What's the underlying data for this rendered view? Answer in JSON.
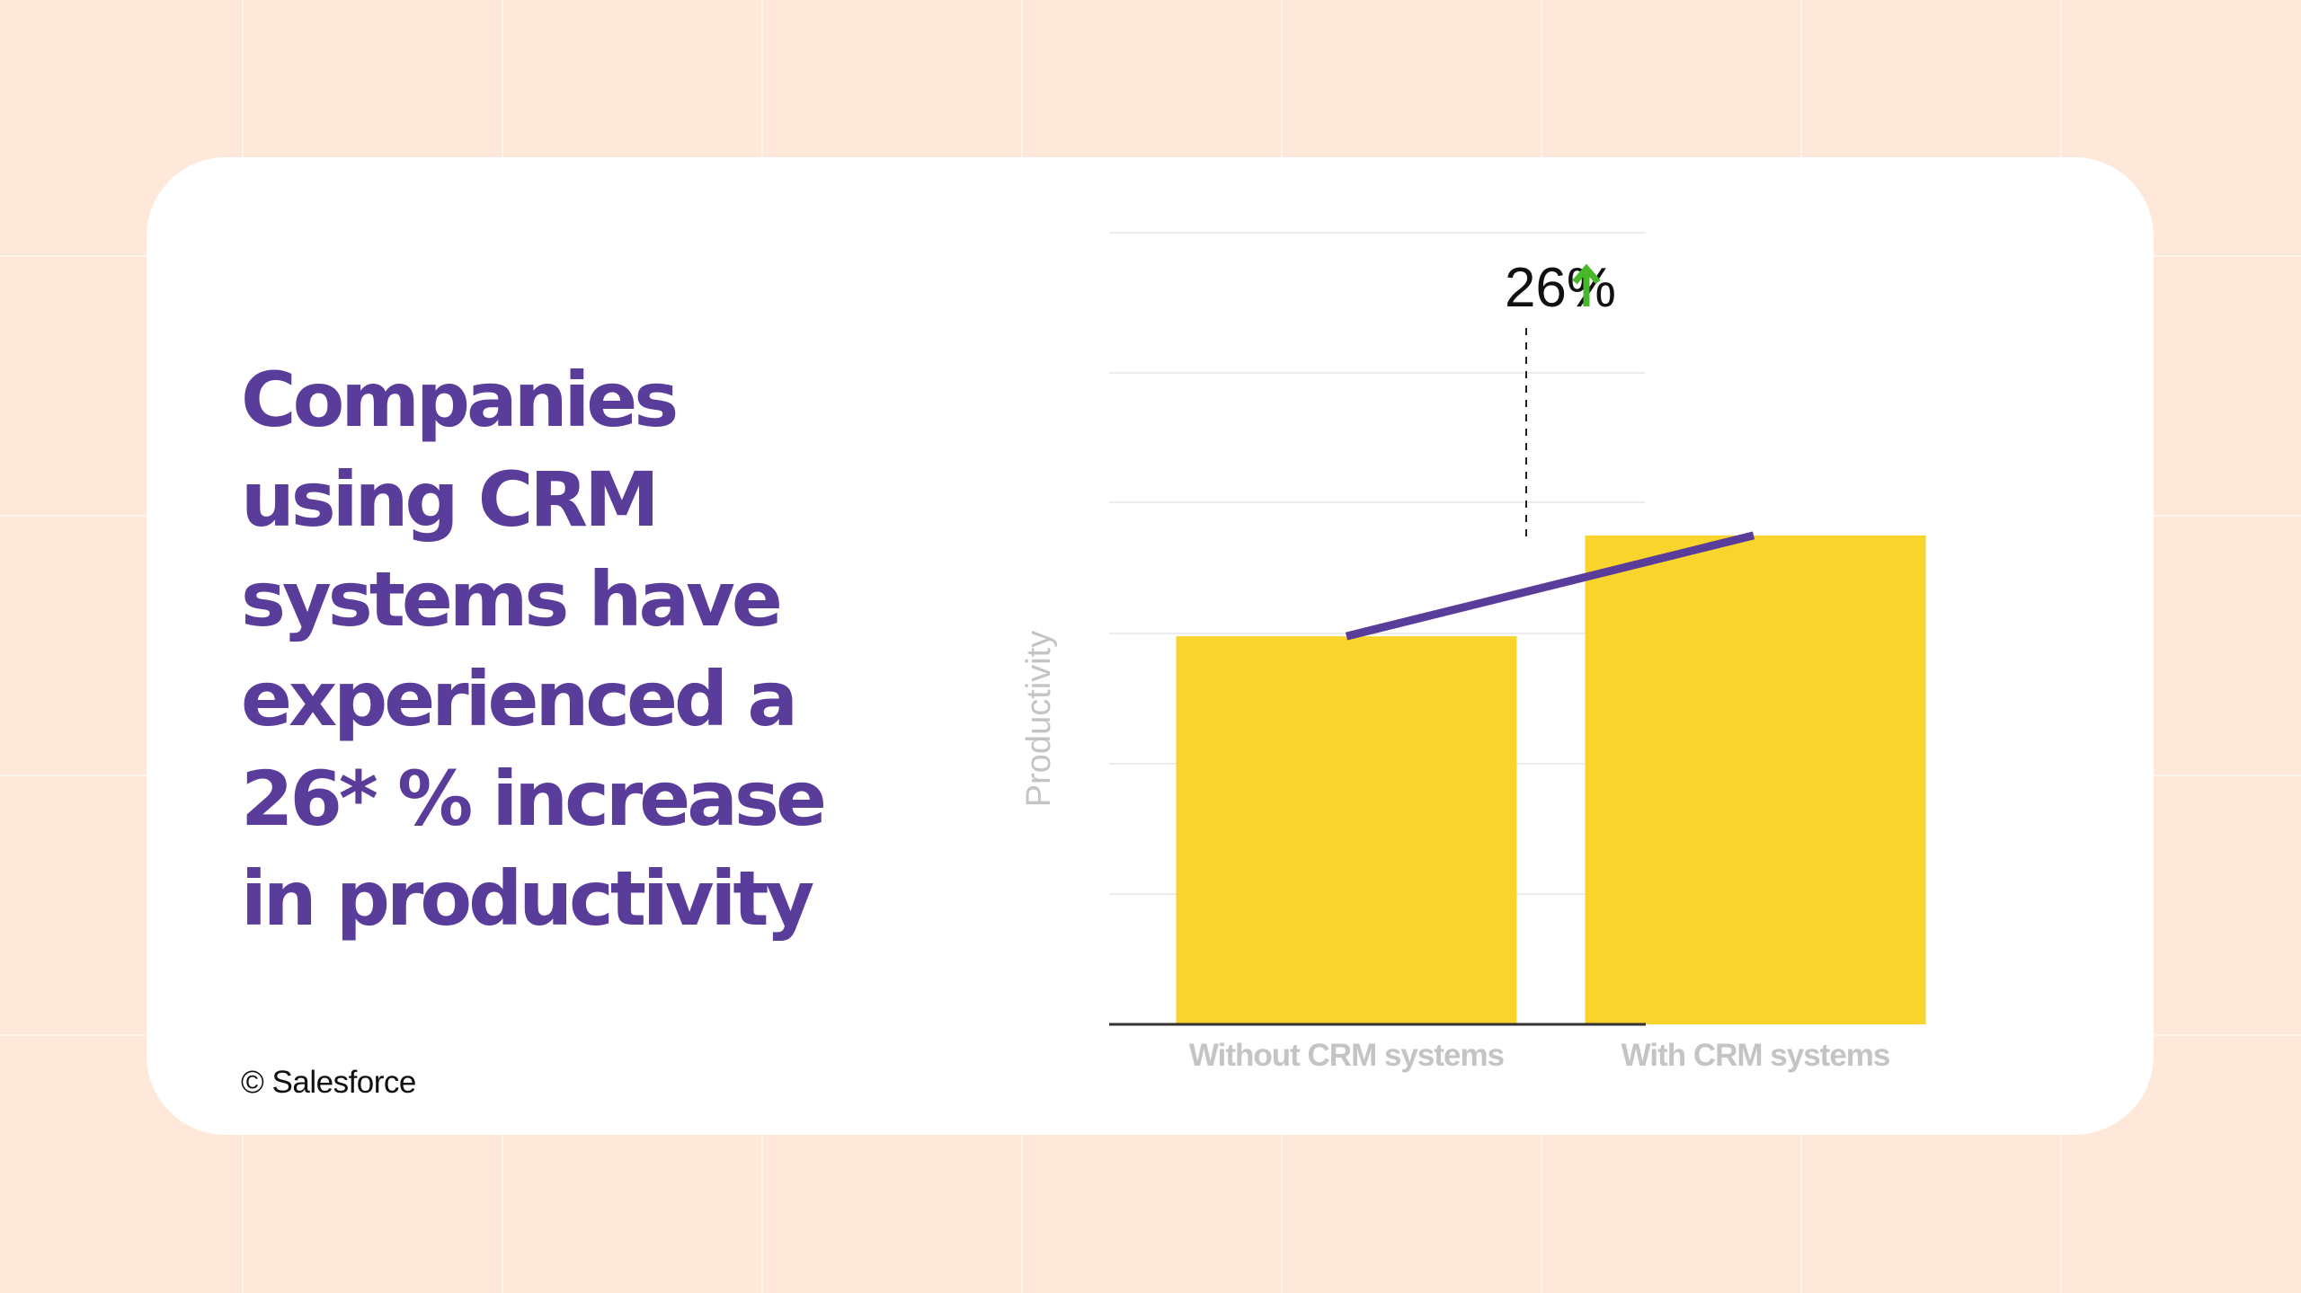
{
  "headline": "Companies using CRM systems have experienced a 26* % increase in productivity",
  "copyright": "© Salesforce",
  "colors": {
    "background": "#fde8d9",
    "card": "#ffffff",
    "headline": "#5a3c9b",
    "bar": "#f9d42c",
    "trend_line": "#5a3c9b",
    "arrow": "#46b82a",
    "gridline": "#ececec",
    "axis": "#333333",
    "label": "#c4c4c4"
  },
  "chart_data": {
    "type": "bar",
    "categories": [
      "Without CRM systems",
      "With CRM systems"
    ],
    "values": [
      100,
      126
    ],
    "ylabel": "Productivity",
    "xlabel": "",
    "ylim": [
      0,
      204
    ],
    "grid": true,
    "annotation": {
      "text": "26%",
      "arrow": "up-arrow-icon"
    },
    "trend_line": true
  }
}
